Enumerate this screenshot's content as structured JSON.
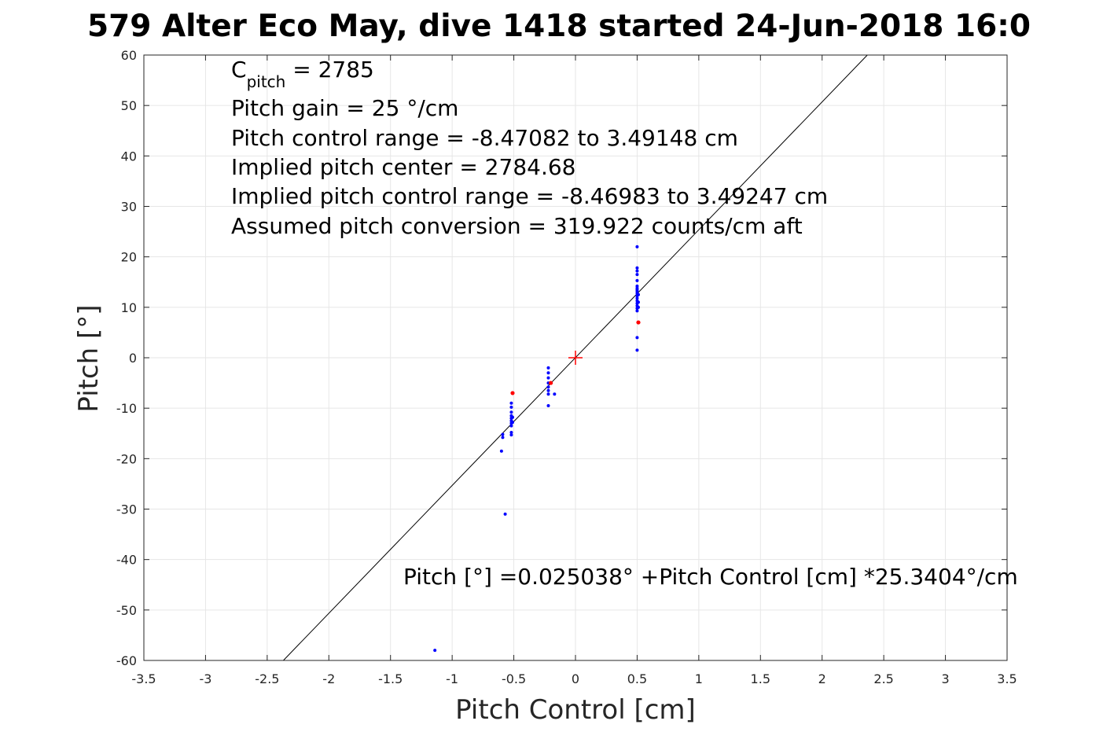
{
  "chart_data": {
    "type": "scatter",
    "title": "579 Alter Eco May, dive 1418 started 24-Jun-2018 16:0",
    "xlabel": "Pitch Control [cm]",
    "ylabel": "Pitch [°]",
    "xlim": [
      -3.5,
      3.5
    ],
    "ylim": [
      -60,
      60
    ],
    "xticks": [
      -3.5,
      -3,
      -2.5,
      -2,
      -1.5,
      -1,
      -0.5,
      0,
      0.5,
      1,
      1.5,
      2,
      2.5,
      3,
      3.5
    ],
    "xtick_labels": [
      "-3.5",
      "-3",
      "-2.5",
      "-2",
      "-1.5",
      "-1",
      "-0.5",
      "0",
      "0.5",
      "1",
      "1.5",
      "2",
      "2.5",
      "3",
      "3.5"
    ],
    "yticks": [
      -60,
      -50,
      -40,
      -30,
      -20,
      -10,
      0,
      10,
      20,
      30,
      40,
      50,
      60
    ],
    "ytick_labels": [
      "-60",
      "-50",
      "-40",
      "-30",
      "-20",
      "-10",
      "0",
      "10",
      "20",
      "30",
      "40",
      "50",
      "60"
    ],
    "grid": true,
    "colors": {
      "blue_points": "#0000ff",
      "red_points": "#ff0000",
      "fit_line": "#000000",
      "grid": "#e6e6e6",
      "axes": "#262626"
    },
    "annotations": {
      "c_pitch_main": "C",
      "c_pitch_sub": "pitch",
      "c_pitch_value": " = 2785",
      "pitch_gain": "Pitch gain = 25 °/cm",
      "control_range": "Pitch control range = -8.47082 to 3.49148 cm",
      "implied_center": "Implied pitch center = 2784.68",
      "implied_range": "Implied pitch control range = -8.46983 to 3.49247 cm",
      "conversion": "Assumed pitch conversion = 319.922 counts/cm aft",
      "fit_equation": "Pitch [°] =0.025038° +Pitch Control [cm] *25.3404°/cm"
    },
    "fit_line": {
      "intercept": 0.025038,
      "slope": 25.3404
    },
    "center_marker": {
      "x": 0,
      "y": 0
    },
    "series": [
      {
        "color": "#0000ff",
        "points": [
          [
            0.5,
            22
          ],
          [
            0.5,
            17.8
          ],
          [
            0.5,
            17.2
          ],
          [
            0.5,
            16.5
          ],
          [
            0.5,
            15.3
          ],
          [
            0.5,
            14.2
          ],
          [
            0.5,
            13.8
          ],
          [
            0.5,
            13.5
          ],
          [
            0.5,
            13.2
          ],
          [
            0.5,
            12.8
          ],
          [
            0.5,
            12.3
          ],
          [
            0.5,
            11.8
          ],
          [
            0.5,
            11.3
          ],
          [
            0.5,
            10.8
          ],
          [
            0.5,
            10.3
          ],
          [
            0.5,
            9.8
          ],
          [
            0.5,
            9.3
          ],
          [
            0.51,
            12.5
          ],
          [
            0.51,
            11.0
          ],
          [
            0.51,
            10.0
          ],
          [
            0.5,
            4.0
          ],
          [
            0.5,
            1.5
          ],
          [
            -0.22,
            -2.0
          ],
          [
            -0.22,
            -3.0
          ],
          [
            -0.22,
            -4.0
          ],
          [
            -0.22,
            -5.0
          ],
          [
            -0.22,
            -5.8
          ],
          [
            -0.22,
            -6.5
          ],
          [
            -0.22,
            -7.2
          ],
          [
            -0.22,
            -9.5
          ],
          [
            -0.17,
            -7.2
          ],
          [
            -0.52,
            -9.0
          ],
          [
            -0.52,
            -9.8
          ],
          [
            -0.52,
            -10.8
          ],
          [
            -0.52,
            -11.5
          ],
          [
            -0.52,
            -12.0
          ],
          [
            -0.52,
            -12.5
          ],
          [
            -0.52,
            -13.0
          ],
          [
            -0.52,
            -13.5
          ],
          [
            -0.52,
            -14.8
          ],
          [
            -0.52,
            -15.3
          ],
          [
            -0.51,
            -11.8
          ],
          [
            -0.51,
            -12.8
          ],
          [
            -0.59,
            -15.2
          ],
          [
            -0.59,
            -15.8
          ],
          [
            -0.6,
            -18.5
          ],
          [
            -0.57,
            -31.0
          ],
          [
            -1.14,
            -58.0
          ]
        ]
      },
      {
        "color": "#ff0000",
        "points": [
          [
            -0.51,
            -7.0
          ],
          [
            -0.2,
            -5.0
          ],
          [
            0.51,
            7.0
          ]
        ]
      }
    ]
  }
}
